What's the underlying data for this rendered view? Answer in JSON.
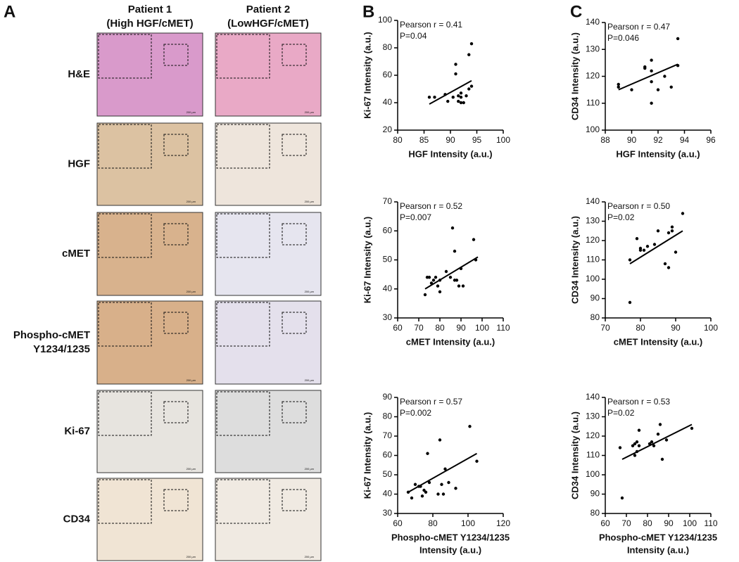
{
  "panel_labels": [
    "A",
    "B",
    "C"
  ],
  "panel_a": {
    "columns": [
      [
        "Patient 1",
        "(High HGF/cMET)"
      ],
      [
        "Patient 2",
        "(LowHGF/cMET)"
      ]
    ],
    "rows": [
      [
        "H&E"
      ],
      [
        "HGF"
      ],
      [
        "cMET"
      ],
      [
        "Phospho-cMET",
        "Y1234/1235"
      ],
      [
        "Ki-67"
      ],
      [
        "CD34"
      ]
    ],
    "scale_bar": "200 µm"
  },
  "chart_data": [
    {
      "type": "scatter",
      "x_label": [
        "HGF Intensity (a.u.)"
      ],
      "y_label": "Ki-67 Intensity (a.u.)",
      "annotations": [
        "Pearson r = 0.41",
        "P=0.04"
      ],
      "x": [
        86,
        87,
        89,
        89.5,
        90.5,
        91,
        91,
        91.5,
        91.5,
        92,
        92,
        92.5,
        93,
        93.5,
        93.5,
        94,
        94,
        92
      ],
      "y": [
        44,
        44,
        46,
        41,
        44,
        61,
        68,
        45,
        41,
        40,
        44,
        40,
        45,
        75,
        50,
        83,
        52,
        47
      ],
      "trend_line": {
        "x": [
          86,
          94
        ],
        "y": [
          39,
          56
        ]
      },
      "xlim": [
        80,
        100
      ],
      "xticks": [
        80,
        85,
        90,
        95,
        100
      ],
      "ylim": [
        20,
        100
      ],
      "yticks": [
        20,
        40,
        60,
        80,
        100
      ],
      "color": "#000000"
    },
    {
      "type": "scatter",
      "x_label": [
        "cMET Intensity (a.u.)"
      ],
      "y_label": "Ki-67 Intensity (a.u.)",
      "annotations": [
        "Pearson r = 0.52",
        "P=0.007"
      ],
      "x": [
        73,
        74,
        75,
        76,
        77,
        78,
        79,
        80,
        80,
        83,
        85,
        86,
        87,
        87,
        88,
        89,
        90,
        91,
        96,
        97
      ],
      "y": [
        38,
        44,
        44,
        42,
        43,
        44,
        41,
        39,
        43,
        46,
        44,
        61,
        53,
        43,
        43,
        41,
        47,
        41,
        57,
        50
      ],
      "trend_line": {
        "x": [
          73,
          98
        ],
        "y": [
          40,
          51
        ]
      },
      "xlim": [
        60,
        110
      ],
      "xticks": [
        60,
        70,
        80,
        90,
        100,
        110
      ],
      "ylim": [
        30,
        70
      ],
      "yticks": [
        30,
        40,
        50,
        60,
        70
      ],
      "color": "#000000"
    },
    {
      "type": "scatter",
      "x_label": [
        "Phospho-cMET Y1234/1235",
        "Intensity (a.u.)"
      ],
      "y_label": "Ki-67 Intensity (a.u.)",
      "annotations": [
        "Pearson r = 0.57",
        "P=0.002"
      ],
      "x": [
        66,
        68,
        70,
        72,
        73,
        74,
        75,
        76,
        77,
        78,
        83,
        84,
        85,
        86,
        87,
        89,
        93,
        101,
        105
      ],
      "y": [
        41,
        38,
        45,
        44,
        44,
        39,
        42,
        41,
        61,
        46,
        40,
        68,
        45,
        40,
        53,
        46,
        43,
        75,
        57
      ],
      "trend_line": {
        "x": [
          66,
          105
        ],
        "y": [
          41,
          61
        ]
      },
      "xlim": [
        60,
        120
      ],
      "xticks": [
        60,
        80,
        100,
        120
      ],
      "ylim": [
        30,
        90
      ],
      "yticks": [
        30,
        40,
        50,
        60,
        70,
        80,
        90
      ],
      "color": "#000000"
    },
    {
      "type": "scatter",
      "x_label": [
        "HGF Intensity (a.u.)"
      ],
      "y_label": "CD34 Intensity (a.u.)",
      "annotations": [
        "Pearson r = 0.47",
        "P=0.046"
      ],
      "x": [
        89,
        89,
        90,
        91,
        91,
        91.5,
        91.5,
        91.5,
        91.5,
        92,
        92.5,
        93,
        93.5,
        93.5
      ],
      "y": [
        117,
        116,
        115,
        123,
        123.5,
        126,
        118,
        110,
        122,
        115,
        120,
        116,
        134,
        124
      ],
      "trend_line": {
        "x": [
          89,
          93.5
        ],
        "y": [
          115,
          124.5
        ]
      },
      "xlim": [
        88,
        96
      ],
      "xticks": [
        88,
        90,
        92,
        94,
        96
      ],
      "ylim": [
        100,
        140
      ],
      "yticks": [
        100,
        110,
        120,
        130,
        140
      ],
      "color": "#000000"
    },
    {
      "type": "scatter",
      "x_label": [
        "cMET Intensity (a.u.)"
      ],
      "y_label": "CD34 Intensity (a.u.)",
      "annotations": [
        "Pearson r = 0.50",
        "P=0.02"
      ],
      "x": [
        77,
        77,
        79,
        80,
        80,
        81,
        82,
        84,
        85,
        87,
        88,
        88,
        89,
        90,
        92,
        89
      ],
      "y": [
        110,
        88,
        121,
        116,
        115,
        115,
        117,
        118,
        125,
        108,
        106,
        124,
        127,
        114,
        134,
        125
      ],
      "trend_line": {
        "x": [
          77,
          92
        ],
        "y": [
          108,
          125
        ]
      },
      "xlim": [
        70,
        100
      ],
      "xticks": [
        70,
        80,
        90,
        100
      ],
      "ylim": [
        80,
        140
      ],
      "yticks": [
        80,
        90,
        100,
        110,
        120,
        130,
        140
      ],
      "color": "#000000"
    },
    {
      "type": "scatter",
      "x_label": [
        "Phospho-cMET Y1234/1235",
        "Intensity (a.u.)"
      ],
      "y_label": "CD34 Intensity (a.u.)",
      "annotations": [
        "Pearson r = 0.53",
        "P=0.02"
      ],
      "x": [
        67,
        68,
        73,
        74,
        74,
        75,
        76,
        76,
        81,
        82,
        83,
        85,
        86,
        87,
        89,
        101,
        75
      ],
      "y": [
        114,
        88,
        115,
        110,
        116,
        117,
        115,
        123,
        116,
        117,
        115,
        121,
        126,
        108,
        118,
        124,
        112
      ],
      "trend_line": {
        "x": [
          68,
          101
        ],
        "y": [
          108,
          126
        ]
      },
      "xlim": [
        60,
        110
      ],
      "xticks": [
        60,
        70,
        80,
        90,
        100,
        110
      ],
      "ylim": [
        80,
        140
      ],
      "yticks": [
        80,
        90,
        100,
        110,
        120,
        130,
        140
      ],
      "color": "#000000"
    }
  ]
}
